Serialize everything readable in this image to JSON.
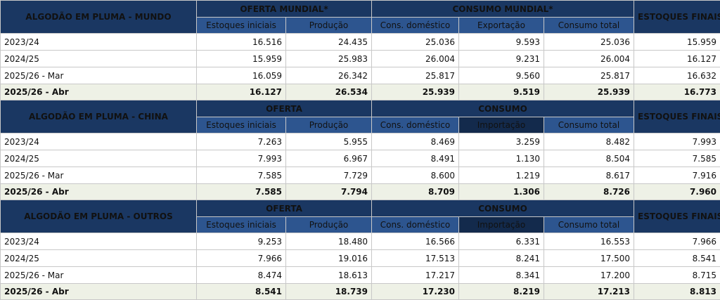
{
  "blocks": [
    {
      "title": "ALGODÃO EM PLUMA - MUNDO",
      "supply_header": "OFERTA MUNDIAL*",
      "consumption_header": "CONSUMO MUNDIAL*",
      "ending_header": "ESTOQUES FINAIS*",
      "sub_headers": [
        "Estoques iniciais",
        "Produção",
        "Cons. doméstico",
        "Exportação",
        "Consumo total"
      ],
      "rows": [
        {
          "label": "2023/24",
          "values": [
            "16.516",
            "24.435",
            "25.036",
            "9.593",
            "25.036",
            "15.959"
          ]
        },
        {
          "label": "2024/25",
          "values": [
            "15.959",
            "25.983",
            "26.004",
            "9.231",
            "26.004",
            "16.127"
          ]
        },
        {
          "label": "2025/26 - Mar",
          "values": [
            "16.059",
            "26.342",
            "25.817",
            "9.560",
            "25.817",
            "16.632"
          ]
        },
        {
          "label": "2025/26 - Abr",
          "values": [
            "16.127",
            "26.534",
            "25.939",
            "9.519",
            "25.939",
            "16.773"
          ]
        }
      ]
    },
    {
      "title": "ALGODÃO EM PLUMA - CHINA",
      "supply_header": "OFERTA",
      "consumption_header": "CONSUMO",
      "ending_header": "ESTOQUES FINAIS*",
      "sub_headers": [
        "Estoques iniciais",
        "Produção",
        "Cons. doméstico",
        "Importação",
        "Consumo total"
      ],
      "rows": [
        {
          "label": "2023/24",
          "values": [
            "7.263",
            "5.955",
            "8.469",
            "3.259",
            "8.482",
            "7.993"
          ]
        },
        {
          "label": "2024/25",
          "values": [
            "7.993",
            "6.967",
            "8.491",
            "1.130",
            "8.504",
            "7.585"
          ]
        },
        {
          "label": "2025/26 - Mar",
          "values": [
            "7.585",
            "7.729",
            "8.600",
            "1.219",
            "8.617",
            "7.916"
          ]
        },
        {
          "label": "2025/26 - Abr",
          "values": [
            "7.585",
            "7.794",
            "8.709",
            "1.306",
            "8.726",
            "7.960"
          ]
        }
      ]
    },
    {
      "title": "ALGODÃO EM PLUMA - OUTROS",
      "supply_header": "OFERTA",
      "consumption_header": "CONSUMO",
      "ending_header": "ESTOQUES FINAIS*",
      "sub_headers": [
        "Estoques iniciais",
        "Produção",
        "Cons. doméstico",
        "Importação",
        "Consumo total"
      ],
      "rows": [
        {
          "label": "2023/24",
          "values": [
            "9.253",
            "18.480",
            "16.566",
            "6.331",
            "16.553",
            "7.966"
          ]
        },
        {
          "label": "2024/25",
          "values": [
            "7.966",
            "19.016",
            "17.513",
            "8.241",
            "17.500",
            "8.541"
          ]
        },
        {
          "label": "2025/26 - Mar",
          "values": [
            "8.474",
            "18.613",
            "17.217",
            "8.341",
            "17.200",
            "8.715"
          ]
        },
        {
          "label": "2025/26 - Abr",
          "values": [
            "8.541",
            "18.739",
            "17.230",
            "8.219",
            "17.213",
            "8.813"
          ]
        }
      ]
    }
  ]
}
